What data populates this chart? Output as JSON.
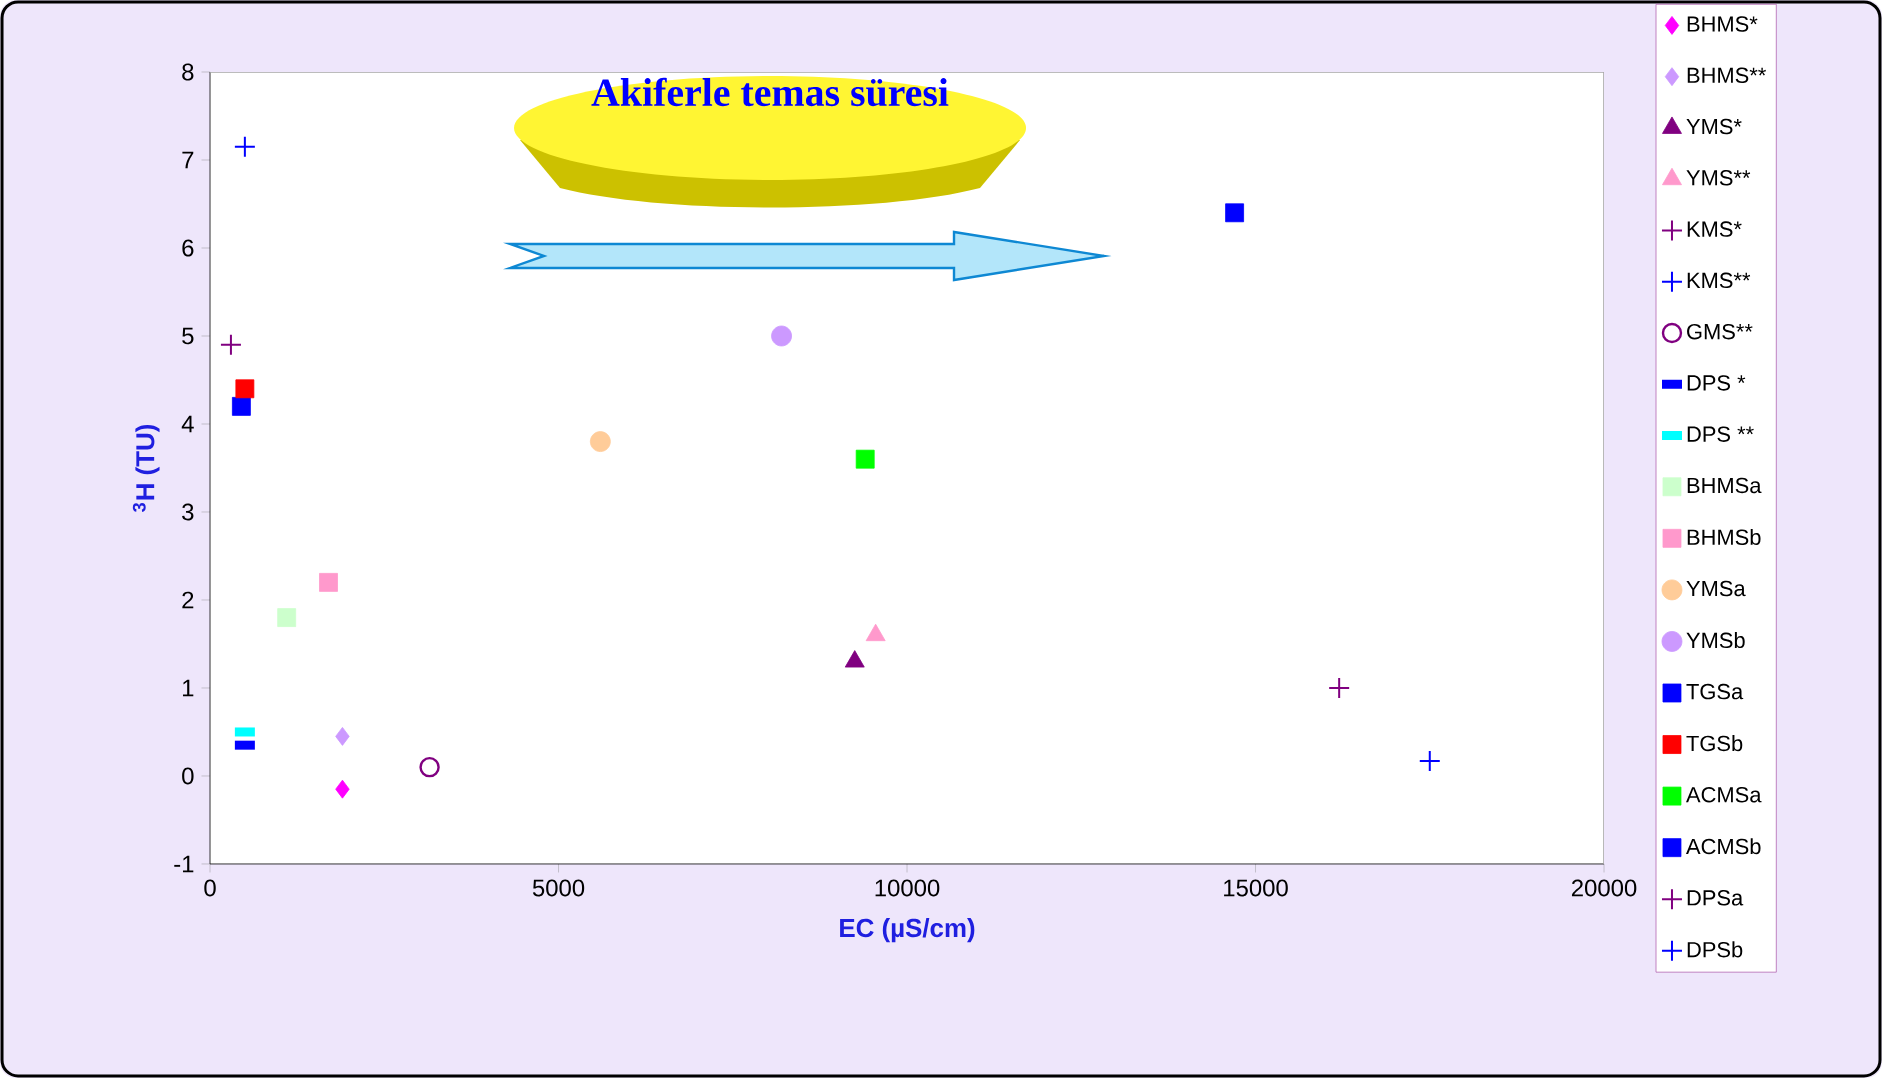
{
  "chart_data": {
    "type": "scatter",
    "xlabel": "EC (µS/cm)",
    "ylabel": "$^{3}$H (TU)",
    "annotations": [
      "Akiferle temas süresi"
    ],
    "xlim": [
      0,
      20000
    ],
    "xticks": [
      0,
      5000,
      10000,
      15000,
      20000
    ],
    "ylim": [
      -1,
      8
    ],
    "yticks": [
      -1,
      0,
      1,
      2,
      3,
      4,
      5,
      6,
      7,
      8
    ],
    "legend": "right",
    "series": [
      {
        "name": "BHMS*",
        "color": "#ff00ff",
        "marker": "diamond",
        "x": [
          1900
        ],
        "values": [
          -0.15
        ]
      },
      {
        "name": "BHMS**",
        "color": "#cc99ff",
        "marker": "diamond",
        "x": [
          1900
        ],
        "values": [
          0.45
        ]
      },
      {
        "name": "YMS*",
        "color": "#800080",
        "marker": "triangle",
        "x": [
          9250
        ],
        "values": [
          1.3
        ]
      },
      {
        "name": "YMS**",
        "color": "#ff99cc",
        "marker": "triangle",
        "x": [
          9550
        ],
        "values": [
          1.6
        ]
      },
      {
        "name": "KMS*",
        "color": "#800080",
        "marker": "cross",
        "x": [
          16200
        ],
        "values": [
          1.0
        ]
      },
      {
        "name": "KMS**",
        "color": "#0000ff",
        "marker": "cross",
        "x": [
          17500
        ],
        "values": [
          0.17
        ]
      },
      {
        "name": "GMS**",
        "color": "#800080",
        "marker": "circle",
        "x": [
          3150
        ],
        "values": [
          0.1
        ]
      },
      {
        "name": "DPS *",
        "color": "#0000ff",
        "x": [
          500
        ],
        "values": [
          0.35
        ]
      },
      {
        "name": "DPS **",
        "color": "#00ffff",
        "x": [
          500
        ],
        "values": [
          0.5
        ]
      },
      {
        "name": "BHMSa",
        "color": "#ccffcc",
        "marker": "square",
        "x": [
          1100
        ],
        "values": [
          1.8
        ]
      },
      {
        "name": "BHMSb",
        "color": "#ff99cc",
        "marker": "square",
        "x": [
          1700
        ],
        "values": [
          2.2
        ]
      },
      {
        "name": "YMSa",
        "color": "#ffcc99",
        "marker": "circle",
        "x": [
          5600
        ],
        "values": [
          3.8
        ]
      },
      {
        "name": "YMSb",
        "color": "#cc99ff",
        "marker": "circle",
        "x": [
          8200
        ],
        "values": [
          5.0
        ]
      },
      {
        "name": "TGSa",
        "color": "#0000ff",
        "marker": "square",
        "x": [
          450
        ],
        "values": [
          4.2
        ]
      },
      {
        "name": "TGSb",
        "color": "#ff0000",
        "marker": "square",
        "x": [
          500
        ],
        "values": [
          4.4
        ]
      },
      {
        "name": "ACMSa",
        "color": "#00ff00",
        "marker": "square",
        "x": [
          9400
        ],
        "values": [
          3.6
        ]
      },
      {
        "name": "ACMSb",
        "color": "#0000ff",
        "marker": "square",
        "x": [
          14700
        ],
        "values": [
          6.4
        ]
      },
      {
        "name": "DPSa",
        "color": "#800080",
        "marker": "cross",
        "x": [
          300
        ],
        "values": [
          4.9
        ]
      },
      {
        "name": "DPSb",
        "color": "#0000ff",
        "marker": "cross",
        "x": [
          500
        ],
        "values": [
          7.15
        ]
      }
    ]
  }
}
